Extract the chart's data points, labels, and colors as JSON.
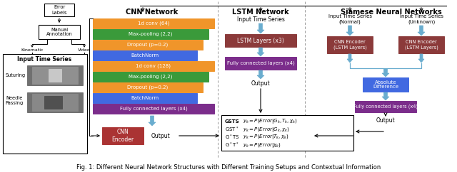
{
  "title": "Fig. 1: Different Neural Network Structures with Different Training Setups and Contextual Information",
  "bg_color": "#ffffff",
  "cnn_layers": [
    {
      "label": "1d conv (64)",
      "color": "#F0952A"
    },
    {
      "label": "Max-pooling (2,2)",
      "color": "#3A9A3A"
    },
    {
      "label": "Dropout (p=0.2)",
      "color": "#F0952A"
    },
    {
      "label": "BatchNorm",
      "color": "#4169E1"
    },
    {
      "label": "1d conv (128)",
      "color": "#F0952A"
    },
    {
      "label": "Max-pooling (2,2)",
      "color": "#3A9A3A"
    },
    {
      "label": "Dropout (p=0.2)",
      "color": "#F0952A"
    },
    {
      "label": "BatchNorm",
      "color": "#4169E1"
    },
    {
      "label": "Fully connected layers (x4)",
      "color": "#7B2D8B"
    }
  ],
  "lstm_color_dark": "#8B3A3A",
  "lstm_color_purple": "#7B2D8B",
  "siamese_cnn_color": "#8B3A3A",
  "siamese_abs_color": "#4169E1",
  "siamese_fc_color": "#7B2D8B",
  "cnn_encoder_color": "#AA3333",
  "arrow_blue": "#6AADCF",
  "arrow_dark": "#333333"
}
